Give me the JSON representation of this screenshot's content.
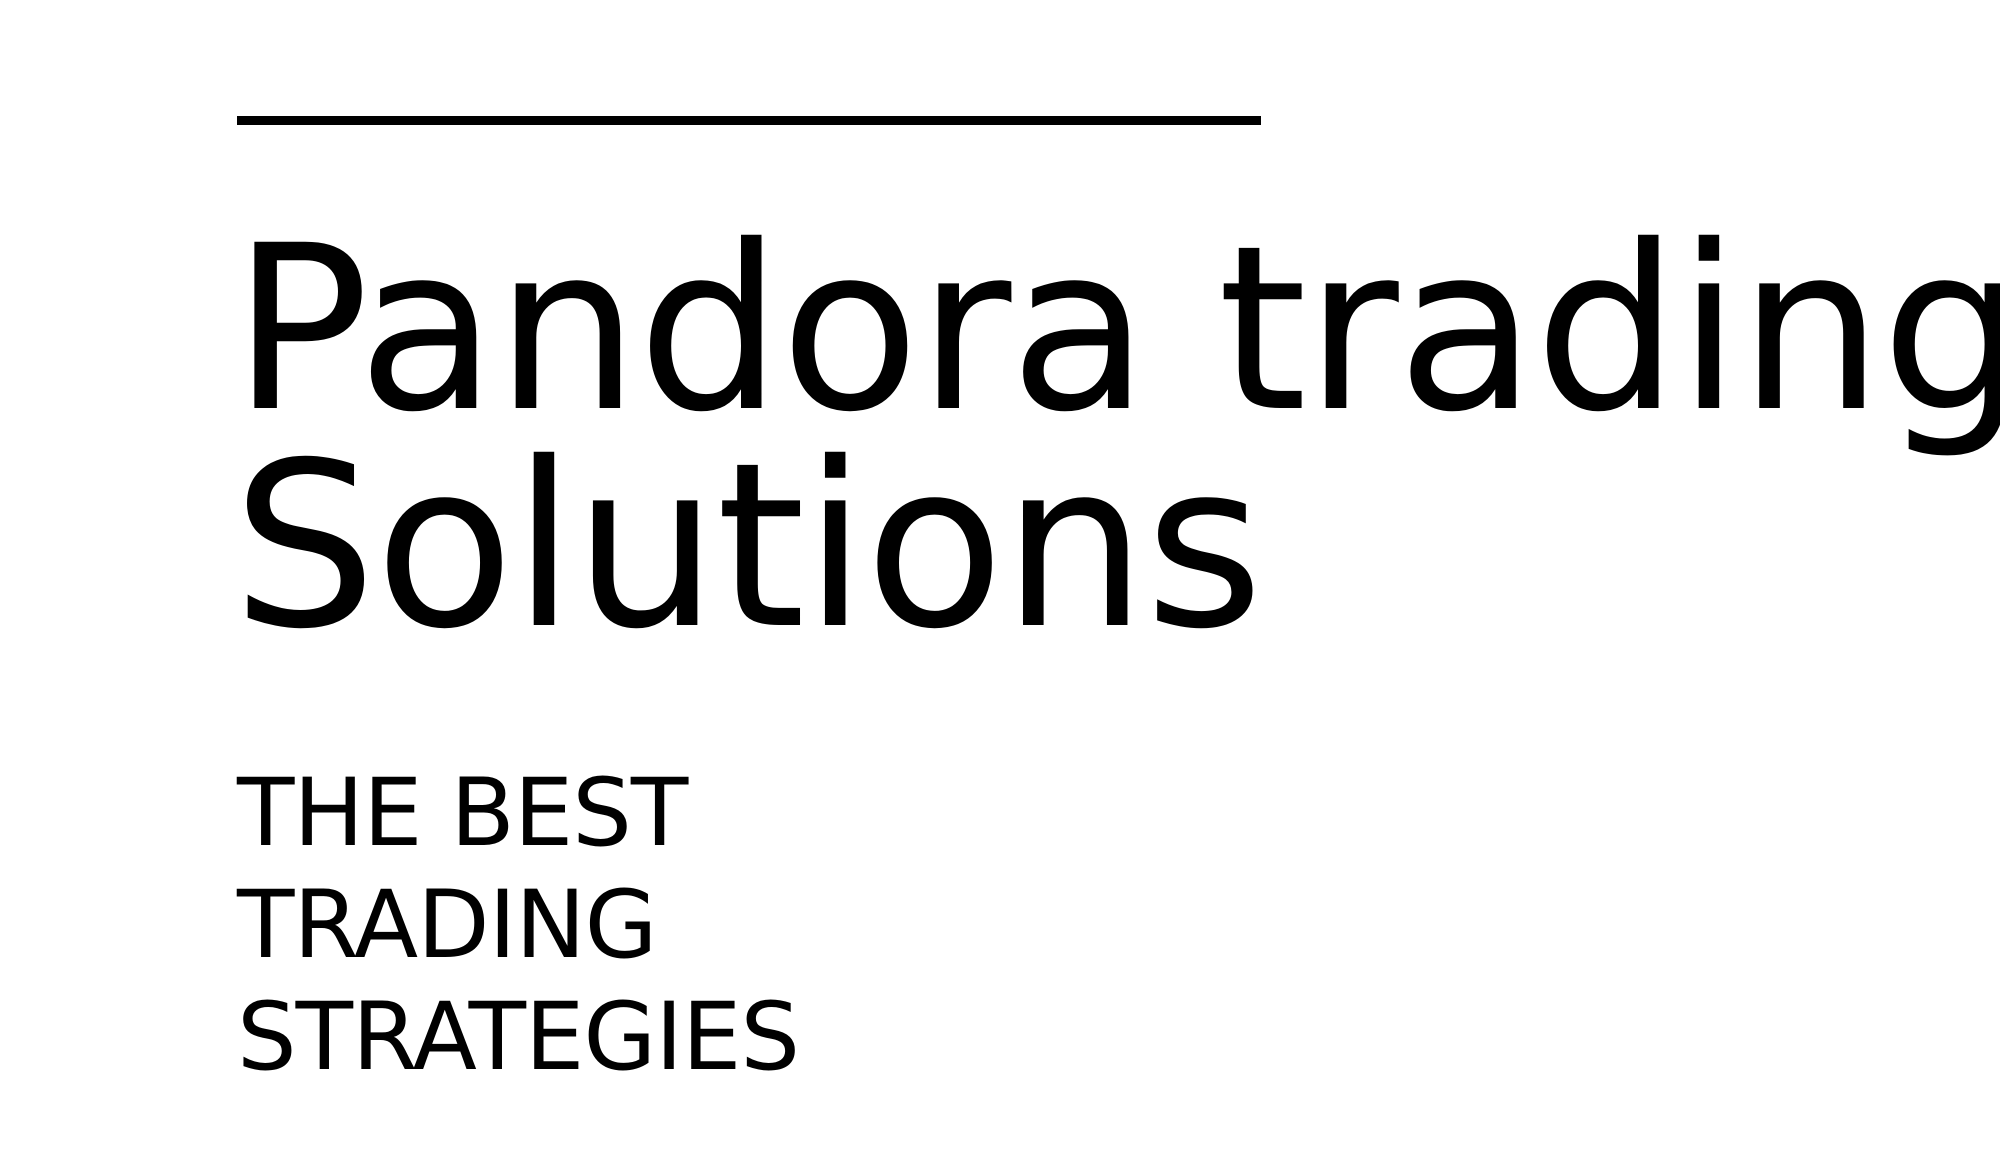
{
  "brand": {
    "title_line_1": "Pandora trading",
    "title_line_2": "Solutions",
    "tagline": [
      "THE BEST",
      "TRADING",
      "STRATEGIES"
    ]
  },
  "colors": {
    "background": "#ffffff",
    "text": "#000000"
  }
}
